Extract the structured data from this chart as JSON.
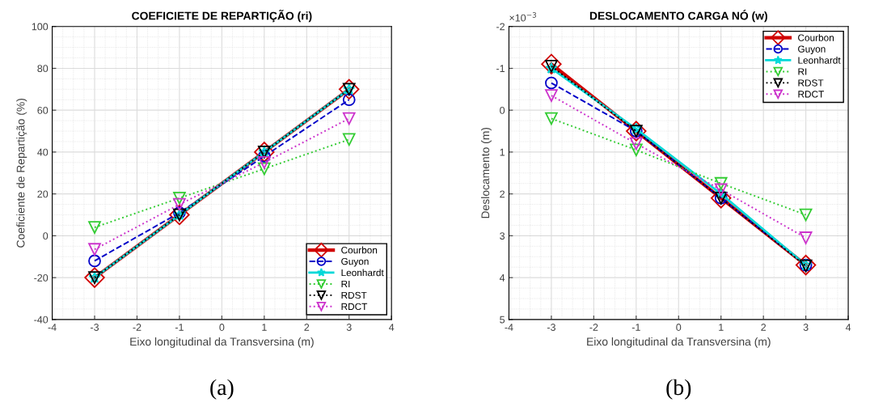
{
  "chart_data": [
    {
      "type": "line",
      "title": "COEFICIETE DE REPARTIÇÃO (ri)",
      "xlabel": "Eixo longitudinal da Transversina (m)",
      "ylabel": "Coeficiente de Repartição (%)",
      "x": [
        -3,
        -1,
        1,
        3
      ],
      "xlim": [
        -4,
        4
      ],
      "xticks": [
        -4,
        -3,
        -2,
        -1,
        0,
        1,
        2,
        3,
        4
      ],
      "ylim": [
        -40,
        100
      ],
      "yticks": [
        -40,
        -20,
        0,
        20,
        40,
        60,
        80,
        100
      ],
      "grid": true,
      "legend": "bottom right",
      "annotations": [
        "(a)"
      ],
      "series": [
        {
          "name": "Courbon",
          "color": "#d00000",
          "marker": "diamond",
          "line_style": "solid",
          "values": [
            -20,
            10,
            40,
            70
          ]
        },
        {
          "name": "Guyon",
          "color": "#0000c8",
          "marker": "circle",
          "line_style": "dashed",
          "values": [
            -12,
            11,
            38,
            65
          ]
        },
        {
          "name": "Leonhardt",
          "color": "#00d8d8",
          "marker": "star",
          "line_style": "solid",
          "values": [
            -20,
            10,
            40,
            70
          ]
        },
        {
          "name": "RI",
          "color": "#33cc33",
          "marker": "triangle",
          "line_style": "dotted",
          "values": [
            4,
            18,
            32,
            46
          ]
        },
        {
          "name": "RDST",
          "color": "#000000",
          "marker": "triangle",
          "line_style": "dotted",
          "values": [
            -20,
            10,
            40,
            70
          ]
        },
        {
          "name": "RDCT",
          "color": "#cc33cc",
          "marker": "triangle",
          "line_style": "dotted",
          "values": [
            -6.5,
            15,
            35,
            56
          ]
        }
      ]
    },
    {
      "type": "line",
      "title": "DESLOCAMENTO CARGA NÓ (w)",
      "xlabel": "Eixo longitudinal da Transversina (m)",
      "ylabel": "Deslocamento (m)",
      "x": [
        -3,
        -1,
        1,
        3
      ],
      "xlim": [
        -4,
        4
      ],
      "xticks": [
        -4,
        -3,
        -2,
        -1,
        0,
        1,
        2,
        3,
        4
      ],
      "ylim": [
        5,
        -2
      ],
      "yticks": [
        -2,
        -1,
        0,
        1,
        2,
        3,
        4,
        5
      ],
      "grid": true,
      "legend": "top right",
      "annotations": [
        "×10$^{−3}$",
        "(b)"
      ],
      "series": [
        {
          "name": "Courbon",
          "color": "#d00000",
          "marker": "diamond",
          "line_style": "solid",
          "values": [
            -1.1,
            0.5,
            2.1,
            3.7
          ]
        },
        {
          "name": "Guyon",
          "color": "#0000c8",
          "marker": "circle",
          "line_style": "dashed",
          "values": [
            -0.65,
            0.5,
            2.1,
            3.7
          ]
        },
        {
          "name": "Leonhardt",
          "color": "#00d8d8",
          "marker": "star",
          "line_style": "solid",
          "values": [
            -1.0,
            0.45,
            2.0,
            3.7
          ]
        },
        {
          "name": "RI",
          "color": "#33cc33",
          "marker": "triangle",
          "line_style": "dotted",
          "values": [
            0.2,
            0.95,
            1.75,
            2.5
          ]
        },
        {
          "name": "RDST",
          "color": "#000000",
          "marker": "triangle",
          "line_style": "dotted",
          "values": [
            -1.05,
            0.5,
            2.1,
            3.72
          ]
        },
        {
          "name": "RDCT",
          "color": "#cc33cc",
          "marker": "triangle",
          "line_style": "dotted",
          "values": [
            -0.35,
            0.8,
            1.9,
            3.05
          ]
        }
      ]
    }
  ]
}
